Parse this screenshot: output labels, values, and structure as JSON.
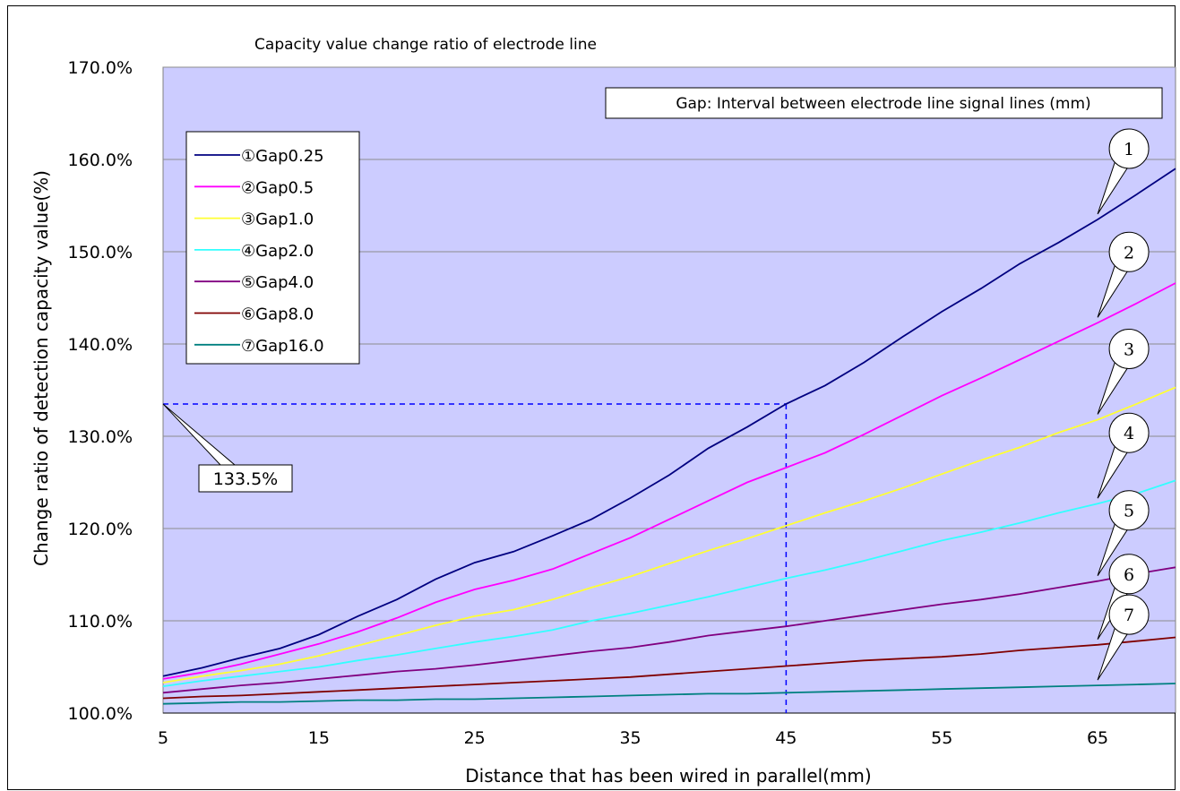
{
  "chart_data": {
    "type": "line",
    "title": "Capacity value change ratio of electrode line",
    "xlabel": "Distance that has been wired in parallel(mm)",
    "ylabel": "Change ratio of detection capacity value(%)",
    "xlim": [
      5,
      70
    ],
    "ylim": [
      100,
      170
    ],
    "x_ticks": [
      5,
      15,
      25,
      35,
      45,
      55,
      65
    ],
    "y_ticks": [
      100,
      110,
      120,
      130,
      140,
      150,
      160,
      170
    ],
    "y_tick_labels": [
      "100.0%",
      "110.0%",
      "120.0%",
      "130.0%",
      "140.0%",
      "150.0%",
      "160.0%",
      "170.0%"
    ],
    "grid": "horizontal",
    "plot_background": "#ccccff",
    "x": [
      5,
      7.5,
      10,
      12.5,
      15,
      17.5,
      20,
      22.5,
      25,
      27.5,
      30,
      32.5,
      35,
      37.5,
      40,
      42.5,
      45,
      47.5,
      50,
      52.5,
      55,
      57.5,
      60,
      62.5,
      65,
      67.5,
      70
    ],
    "series": [
      {
        "name": "①Gap0.25",
        "color": "#000080",
        "values": [
          104.0,
          104.9,
          106.0,
          107.0,
          108.5,
          110.5,
          112.3,
          114.5,
          116.3,
          117.5,
          119.2,
          121.0,
          123.3,
          125.8,
          128.7,
          131.0,
          133.5,
          135.5,
          138.0,
          140.8,
          143.5,
          146.0,
          148.7,
          151.0,
          153.5,
          156.2,
          159.0
        ]
      },
      {
        "name": "②Gap0.5",
        "color": "#ff00ff",
        "values": [
          103.7,
          104.4,
          105.3,
          106.4,
          107.5,
          108.8,
          110.3,
          112.0,
          113.4,
          114.4,
          115.6,
          117.3,
          119.0,
          121.0,
          123.0,
          125.0,
          126.6,
          128.2,
          130.2,
          132.3,
          134.4,
          136.3,
          138.3,
          140.3,
          142.3,
          144.4,
          146.6
        ]
      },
      {
        "name": "③Gap1.0",
        "color": "#ffff33",
        "values": [
          103.3,
          104.0,
          104.6,
          105.3,
          106.2,
          107.3,
          108.4,
          109.5,
          110.5,
          111.2,
          112.3,
          113.6,
          114.8,
          116.2,
          117.6,
          118.9,
          120.3,
          121.7,
          123.0,
          124.4,
          125.9,
          127.4,
          128.8,
          130.4,
          131.8,
          133.5,
          135.3
        ]
      },
      {
        "name": "④Gap2.0",
        "color": "#33ffff",
        "values": [
          102.9,
          103.5,
          104.0,
          104.5,
          105.0,
          105.7,
          106.3,
          107.0,
          107.7,
          108.3,
          109.0,
          110.0,
          110.8,
          111.7,
          112.6,
          113.6,
          114.6,
          115.5,
          116.5,
          117.6,
          118.7,
          119.6,
          120.6,
          121.7,
          122.7,
          123.8,
          125.2
        ]
      },
      {
        "name": "⑤Gap4.0",
        "color": "#800080",
        "values": [
          102.2,
          102.6,
          103.0,
          103.3,
          103.7,
          104.1,
          104.5,
          104.8,
          105.2,
          105.7,
          106.2,
          106.7,
          107.1,
          107.7,
          108.4,
          108.9,
          109.4,
          110.0,
          110.6,
          111.2,
          111.8,
          112.3,
          112.9,
          113.6,
          114.3,
          115.1,
          115.8
        ]
      },
      {
        "name": "⑥Gap8.0",
        "color": "#800000",
        "values": [
          101.6,
          101.8,
          101.9,
          102.1,
          102.3,
          102.5,
          102.7,
          102.9,
          103.1,
          103.3,
          103.5,
          103.7,
          103.9,
          104.2,
          104.5,
          104.8,
          105.1,
          105.4,
          105.7,
          105.9,
          106.1,
          106.4,
          106.8,
          107.1,
          107.4,
          107.8,
          108.2
        ]
      },
      {
        "name": "⑦Gap16.0",
        "color": "#008080",
        "values": [
          101.0,
          101.1,
          101.2,
          101.2,
          101.3,
          101.4,
          101.4,
          101.5,
          101.5,
          101.6,
          101.7,
          101.8,
          101.9,
          102.0,
          102.1,
          102.1,
          102.2,
          102.3,
          102.4,
          102.5,
          102.6,
          102.7,
          102.8,
          102.9,
          103.0,
          103.1,
          103.2
        ]
      }
    ],
    "legend_position": "top-left",
    "annotation_box": "Gap: Interval between electrode line signal lines (mm)",
    "callout_value": "133.5%",
    "reference_point": {
      "x": 45,
      "y": 133.5
    },
    "curve_labels": [
      {
        "label": "1",
        "series_index": 0,
        "x": 65
      },
      {
        "label": "2",
        "series_index": 1,
        "x": 65
      },
      {
        "label": "3",
        "series_index": 2,
        "x": 65
      },
      {
        "label": "4",
        "series_index": 3,
        "x": 65
      },
      {
        "label": "5",
        "series_index": 4,
        "x": 65
      },
      {
        "label": "6",
        "series_index": 5,
        "x": 65
      },
      {
        "label": "7",
        "series_index": 6,
        "x": 65
      }
    ]
  }
}
